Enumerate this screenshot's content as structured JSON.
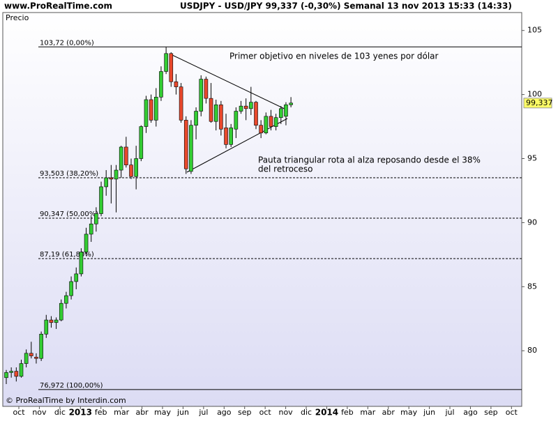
{
  "chart_data": {
    "type": "candlestick",
    "source": "www.ProRealTime.com",
    "title": "USDJPY - USD/JPY    99,337 (-0,30%)    Semanal  13 nov 2013 15:33 (14:33)",
    "y_label": "Precio",
    "footer": "© ProRealTime by Interdin.com",
    "annotations": [
      "Primer objetivo en niveles de 103 yenes por dólar",
      "Pauta triangular rota al alza reposando desde el 38%",
      "del retroceso"
    ],
    "up_color": "#33cc33",
    "down_color": "#e8482c",
    "ylim": [
      76.8,
      106.4
    ],
    "yticks": [
      80,
      85,
      90,
      95,
      100,
      105
    ],
    "xticks": [
      {
        "label": "oct"
      },
      {
        "label": "nov"
      },
      {
        "label": "dic"
      },
      {
        "label": "2013"
      },
      {
        "label": "feb"
      },
      {
        "label": "mar"
      },
      {
        "label": "abr"
      },
      {
        "label": "may"
      },
      {
        "label": "jun"
      },
      {
        "label": "jul"
      },
      {
        "label": "ago"
      },
      {
        "label": "sep"
      },
      {
        "label": "oct"
      },
      {
        "label": "nov"
      },
      {
        "label": "dic"
      },
      {
        "label": "2014"
      },
      {
        "label": "feb"
      },
      {
        "label": "mar"
      },
      {
        "label": "abr"
      },
      {
        "label": "may"
      },
      {
        "label": "jun"
      },
      {
        "label": "jul"
      },
      {
        "label": "ago"
      },
      {
        "label": "sep"
      },
      {
        "label": "oct"
      }
    ],
    "last_price": {
      "value": 99.337,
      "label": "99,337"
    },
    "levels": [
      {
        "value": 103.72,
        "label": "103,72 (0,00%)",
        "style": "solid"
      },
      {
        "value": 93.503,
        "label": "93,503 (38,20%)",
        "style": "dashed"
      },
      {
        "value": 90.347,
        "label": "90,347 (50,00%)",
        "style": "dashed"
      },
      {
        "value": 87.19,
        "label": "87,19 (61,80%)",
        "style": "dashed"
      },
      {
        "value": 76.972,
        "label": "76,972 (100,00%)",
        "style": "solid"
      }
    ],
    "open": [
      77.9,
      78.3,
      78.4,
      78.0,
      79.0,
      79.8,
      79.5,
      79.4,
      81.3,
      82.4,
      82.2,
      82.4,
      83.7,
      84.3,
      85.4,
      86.0,
      87.7,
      89.1,
      89.9,
      90.7,
      92.8,
      93.5,
      93.4,
      94.1,
      95.9,
      94.5,
      93.6,
      95.0,
      97.5,
      99.6,
      98.0,
      99.8,
      101.8,
      103.2,
      101.0,
      100.6,
      98.0,
      94.0,
      97.6,
      98.7,
      101.2,
      99.7,
      97.9,
      99.2,
      97.4,
      96.1,
      97.3,
      98.7,
      99.1,
      98.9,
      99.4,
      97.6,
      97.0,
      98.3,
      97.5,
      98.2,
      98.3,
      99.2
    ],
    "high": [
      78.5,
      78.7,
      78.7,
      79.3,
      80.1,
      80.7,
      79.8,
      81.5,
      82.8,
      82.7,
      82.6,
      84.0,
      84.6,
      85.8,
      86.5,
      88.0,
      89.6,
      90.5,
      91.2,
      93.2,
      94.1,
      94.5,
      94.5,
      96.0,
      96.7,
      95.0,
      96.0,
      97.6,
      99.9,
      100.0,
      100.5,
      102.2,
      103.7,
      103.3,
      101.6,
      100.9,
      98.3,
      98.0,
      99.0,
      101.5,
      101.4,
      100.9,
      99.6,
      99.5,
      98.5,
      97.7,
      99.0,
      99.5,
      99.7,
      100.6,
      99.5,
      98.0,
      98.6,
      98.8,
      98.5,
      99.1,
      99.4,
      99.8
    ],
    "low": [
      77.4,
      77.9,
      77.6,
      77.9,
      78.7,
      79.4,
      79.0,
      79.2,
      81.0,
      81.8,
      81.7,
      82.3,
      83.3,
      84.0,
      84.8,
      85.8,
      87.4,
      88.5,
      89.3,
      90.5,
      92.1,
      91.5,
      90.8,
      93.5,
      94.3,
      93.4,
      92.6,
      94.8,
      97.0,
      97.8,
      97.5,
      99.5,
      101.6,
      100.6,
      100.0,
      97.8,
      93.8,
      93.8,
      96.5,
      98.3,
      99.3,
      97.8,
      97.2,
      96.8,
      95.8,
      95.9,
      96.6,
      98.5,
      98.0,
      98.4,
      97.3,
      96.6,
      96.9,
      97.2,
      97.2,
      97.7,
      97.6,
      99.0
    ],
    "close": [
      78.3,
      78.4,
      78.0,
      79.0,
      79.8,
      79.6,
      79.4,
      81.3,
      82.4,
      82.2,
      82.4,
      83.7,
      84.3,
      85.4,
      86.0,
      87.7,
      89.1,
      89.9,
      90.7,
      92.8,
      93.5,
      93.4,
      94.1,
      95.9,
      94.5,
      93.6,
      95.0,
      97.5,
      99.6,
      98.0,
      99.8,
      101.8,
      103.2,
      101.0,
      100.6,
      98.0,
      94.2,
      97.6,
      98.7,
      101.2,
      99.7,
      97.9,
      99.2,
      97.3,
      96.1,
      97.4,
      98.7,
      99.1,
      98.9,
      99.4,
      97.6,
      97.0,
      98.3,
      97.5,
      98.2,
      98.9,
      99.2,
      99.337
    ]
  }
}
